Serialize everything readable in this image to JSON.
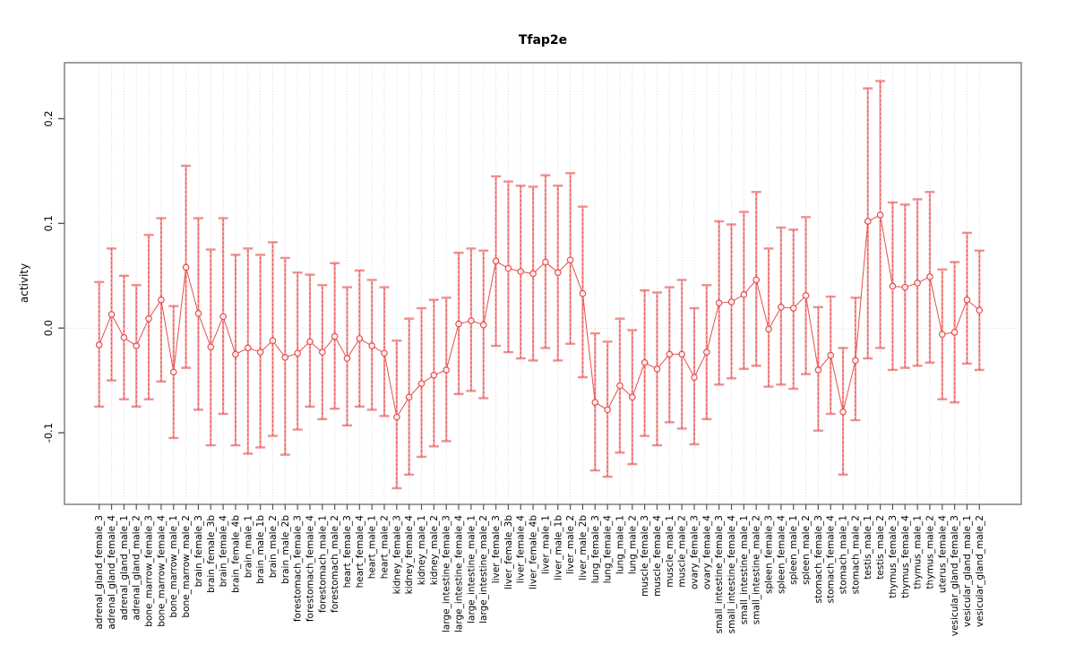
{
  "page": {
    "title": "Tfap2e"
  },
  "chart_data": {
    "type": "errorbar-line",
    "title": "Tfap2e",
    "xlabel": "",
    "ylabel": "activity",
    "grid": "dotted vertical gridline at every category; dotted horizontal line at y=0",
    "legend": "none",
    "ylim": [
      -0.1684,
      0.2535
    ],
    "yticks": [
      -0.1,
      0.0,
      0.1,
      0.2
    ],
    "ytick_labels": [
      "-0.1",
      "0.0",
      "0.1",
      "0.2"
    ],
    "colors": {
      "point_line": "#e84c4c",
      "whisker_pale": "#f49c9c",
      "cap": "#ef8f8f",
      "grid": "#cccccc",
      "frame": "#888888",
      "tick": "#555555",
      "text": "#000000"
    },
    "categories": [
      "adrenal_gland_female_3",
      "adrenal_gland_female_4",
      "adrenal_gland_male_1",
      "adrenal_gland_male_2",
      "bone_marrow_female_3",
      "bone_marrow_female_4",
      "bone_marrow_male_1",
      "bone_marrow_male_2",
      "brain_female_3",
      "brain_female_3b",
      "brain_female_4",
      "brain_female_4b",
      "brain_male_1",
      "brain_male_1b",
      "brain_male_2",
      "brain_male_2b",
      "forestomach_female_3",
      "forestomach_female_4",
      "forestomach_male_1",
      "forestomach_male_2",
      "heart_female_3",
      "heart_female_4",
      "heart_male_1",
      "heart_male_2",
      "kidney_female_3",
      "kidney_female_4",
      "kidney_male_1",
      "kidney_male_2",
      "large_intestine_female_3",
      "large_intestine_female_4",
      "large_intestine_male_1",
      "large_intestine_male_2",
      "liver_female_3",
      "liver_female_3b",
      "liver_female_4",
      "liver_female_4b",
      "liver_male_1",
      "liver_male_1b",
      "liver_male_2",
      "liver_male_2b",
      "lung_female_3",
      "lung_female_4",
      "lung_male_1",
      "lung_male_2",
      "muscle_female_3",
      "muscle_female_4",
      "muscle_male_1",
      "muscle_male_2",
      "ovary_female_3",
      "ovary_female_4",
      "small_intestine_female_3",
      "small_intestine_female_4",
      "small_intestine_male_1",
      "small_intestine_male_2",
      "spleen_female_3",
      "spleen_female_4",
      "spleen_male_1",
      "spleen_male_2",
      "stomach_female_3",
      "stomach_female_4",
      "stomach_male_1",
      "stomach_male_2",
      "testis_male_1",
      "testis_male_2",
      "thymus_female_3",
      "thymus_female_4",
      "thymus_male_1",
      "thymus_male_2",
      "uterus_female_4",
      "vesicular_gland_female_3",
      "vesicular_gland_male_1",
      "vesicular_gland_male_2"
    ],
    "means": [
      -0.016,
      0.013,
      -0.009,
      -0.017,
      0.009,
      0.027,
      -0.042,
      0.058,
      0.014,
      -0.018,
      0.011,
      -0.025,
      -0.019,
      -0.023,
      -0.012,
      -0.028,
      -0.024,
      -0.013,
      -0.023,
      -0.008,
      -0.029,
      -0.01,
      -0.017,
      -0.024,
      -0.085,
      -0.066,
      -0.053,
      -0.045,
      -0.04,
      0.004,
      0.007,
      0.003,
      0.064,
      0.057,
      0.054,
      0.052,
      0.063,
      0.053,
      0.065,
      0.033,
      -0.071,
      -0.078,
      -0.055,
      -0.066,
      -0.033,
      -0.039,
      -0.025,
      -0.025,
      -0.047,
      -0.023,
      0.024,
      0.025,
      0.032,
      0.046,
      -0.001,
      0.02,
      0.019,
      0.031,
      -0.04,
      -0.026,
      -0.08,
      -0.031,
      0.102,
      0.108,
      0.04,
      0.039,
      0.043,
      0.049,
      -0.006,
      -0.004,
      0.027,
      0.017
    ],
    "lower": [
      -0.075,
      -0.05,
      -0.068,
      -0.075,
      -0.068,
      -0.051,
      -0.105,
      -0.038,
      -0.078,
      -0.112,
      -0.082,
      -0.112,
      -0.12,
      -0.114,
      -0.103,
      -0.121,
      -0.097,
      -0.075,
      -0.087,
      -0.077,
      -0.093,
      -0.075,
      -0.078,
      -0.084,
      -0.153,
      -0.14,
      -0.123,
      -0.113,
      -0.108,
      -0.063,
      -0.06,
      -0.067,
      -0.017,
      -0.023,
      -0.029,
      -0.031,
      -0.019,
      -0.031,
      -0.015,
      -0.047,
      -0.136,
      -0.142,
      -0.119,
      -0.13,
      -0.103,
      -0.112,
      -0.09,
      -0.096,
      -0.111,
      -0.087,
      -0.054,
      -0.048,
      -0.039,
      -0.036,
      -0.056,
      -0.054,
      -0.058,
      -0.044,
      -0.098,
      -0.082,
      -0.14,
      -0.088,
      -0.029,
      -0.019,
      -0.04,
      -0.038,
      -0.036,
      -0.033,
      -0.068,
      -0.071,
      -0.034,
      -0.04
    ],
    "upper": [
      0.044,
      0.076,
      0.05,
      0.041,
      0.089,
      0.105,
      0.021,
      0.155,
      0.105,
      0.075,
      0.105,
      0.07,
      0.076,
      0.07,
      0.082,
      0.067,
      0.053,
      0.051,
      0.041,
      0.062,
      0.039,
      0.055,
      0.046,
      0.039,
      -0.012,
      0.009,
      0.019,
      0.027,
      0.029,
      0.072,
      0.076,
      0.074,
      0.145,
      0.14,
      0.136,
      0.135,
      0.146,
      0.136,
      0.148,
      0.116,
      -0.005,
      -0.013,
      0.009,
      -0.002,
      0.036,
      0.034,
      0.039,
      0.046,
      0.019,
      0.041,
      0.102,
      0.099,
      0.111,
      0.13,
      0.076,
      0.096,
      0.094,
      0.106,
      0.02,
      0.03,
      -0.019,
      0.029,
      0.229,
      0.236,
      0.12,
      0.118,
      0.123,
      0.13,
      0.056,
      0.063,
      0.091,
      0.074
    ]
  }
}
